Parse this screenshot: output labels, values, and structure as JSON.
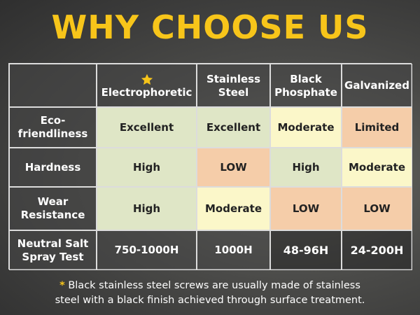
{
  "header": {
    "title": "WHY CHOOSE US"
  },
  "table": {
    "columns": [
      "Electrophoretic",
      "Stainless\nSteel",
      "Black\nPhosphate",
      "Galvanized"
    ],
    "rows": [
      {
        "label": "Eco-\nfriendliness",
        "values": [
          "Excellent",
          "Excellent",
          "Moderate",
          "Limited"
        ]
      },
      {
        "label": "Hardness",
        "values": [
          "High",
          "LOW",
          "High",
          "Moderate"
        ]
      },
      {
        "label": "Wear\nResistance",
        "values": [
          "High",
          "Moderate",
          "LOW",
          "LOW"
        ]
      },
      {
        "label": "Neutral Salt\nSpray Test",
        "values": [
          "750-1000H",
          "1000H",
          "48-96H",
          "24-200H"
        ]
      }
    ]
  },
  "footnote": {
    "marker": "*",
    "text": "Black stainless steel screws are usually made of stainless\nsteel with a black finish achieved through surface treatment."
  }
}
